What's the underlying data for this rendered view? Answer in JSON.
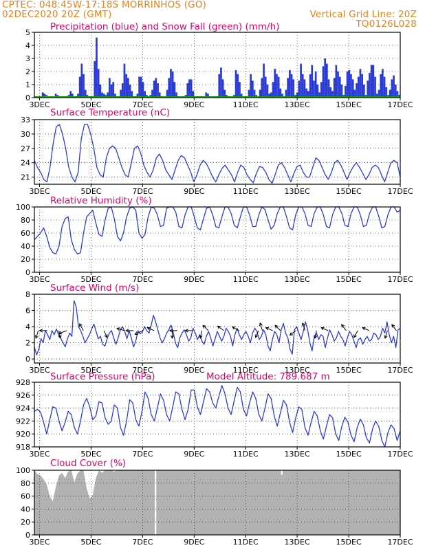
{
  "header": {
    "line1_left": "CPTEC:  048:45W-17:18S  MORRINHOS (GO)",
    "line2_left": "02DEC2020 20Z (GMT)",
    "line2_right": "Vertical Grid Line: 20Z",
    "line3_right": "TQ0126L028"
  },
  "colors": {
    "header": "#e8801a",
    "title": "#e0006f",
    "series": "#2b3bd6",
    "snow": "#00aa00",
    "cloud": "#b2b2b2",
    "arrow": "#000000"
  },
  "x_axis": {
    "tick_labels": [
      "3DEC",
      "5DEC",
      "7DEC",
      "9DEC",
      "11DEC",
      "13DEC",
      "15DEC",
      "17DEC"
    ]
  },
  "chart_data": [
    {
      "id": "precip",
      "type": "bar",
      "title": "Precipitation (blue) and Snow Fall (green) (mm/h)",
      "ylim": [
        0,
        5
      ],
      "yticks": [
        "0",
        "1",
        "2",
        "3",
        "4",
        "5"
      ],
      "grid": true,
      "x_day_range": [
        2.8,
        17.0
      ],
      "bin_hours": 3,
      "values": [
        0,
        0,
        0,
        0.1,
        0.4,
        0.3,
        0.2,
        0.1,
        0,
        0,
        0.1,
        0.3,
        0.2,
        0.1,
        0.1,
        0,
        0.1,
        0,
        0.2,
        0.5,
        0.3,
        0.1,
        0,
        0.3,
        1.6,
        2.6,
        1.8,
        0.6,
        0.2,
        0,
        0,
        0,
        2.8,
        4.6,
        2.2,
        1.0,
        0.4,
        0.3,
        0.2,
        0.4,
        1.5,
        1.0,
        1.2,
        0.3,
        0,
        0.1,
        0.6,
        1.1,
        2.6,
        1.8,
        1.5,
        1.0,
        0.5,
        0.1,
        0,
        0.3,
        1.6,
        1.6,
        1.2,
        0.5,
        0.2,
        0,
        0.2,
        0.6,
        1.3,
        1.5,
        1.1,
        0.4,
        0.1,
        0,
        0,
        0.6,
        1.5,
        2.2,
        2.0,
        1.2,
        0.4,
        0.1,
        0,
        0,
        0,
        0.2,
        1.1,
        1.4,
        1.4,
        0.5,
        0,
        0,
        0,
        0,
        0,
        0.1,
        0.4,
        0.3,
        0.1,
        0,
        0,
        0,
        0.1,
        1.8,
        2.3,
        1.4,
        0.6,
        0.2,
        0,
        0,
        0,
        0.2,
        2.1,
        1.8,
        1.2,
        0.3,
        0,
        0,
        0.1,
        0.6,
        1.8,
        1.3,
        0.6,
        0.2,
        0.1,
        0.6,
        1.5,
        2.6,
        1.6,
        1.0,
        0.3,
        0.4,
        1.2,
        2.2,
        1.8,
        1.6,
        0.7,
        0.3,
        0.1,
        0.6,
        1.5,
        2.1,
        1.8,
        1.4,
        0.2,
        0.4,
        1.3,
        2.6,
        1.8,
        1.4,
        0.7,
        0.5,
        1.8,
        2.5,
        1.3,
        2.0,
        1.0,
        0.4,
        1.2,
        2.4,
        3.0,
        2.6,
        1.4,
        0.8,
        0.5,
        1.5,
        2.5,
        2.0,
        1.6,
        1.0,
        0.2,
        0.9,
        2.0,
        2.1,
        1.8,
        1.4,
        0.6,
        1.1,
        1.6,
        2.2,
        1.8,
        1.0,
        0.2,
        1.3,
        1.9,
        2.5,
        2.5,
        1.6,
        0.3,
        0.6,
        1.8,
        2.2,
        1.6,
        0.8,
        0.2,
        0.6,
        1.4,
        1.7,
        1.0,
        0.5,
        0.2
      ],
      "snow_values": "all 0"
    },
    {
      "id": "temp",
      "type": "line",
      "title": "Surface Temperature (nC)",
      "ylim": [
        19.5,
        33
      ],
      "yticks": [
        "21",
        "24",
        "27",
        "30",
        "33"
      ],
      "grid": true,
      "x_day_range": [
        2.8,
        17.0
      ],
      "y": [
        24.5,
        23.0,
        22.0,
        20.5,
        20.0,
        23.0,
        28.0,
        31.5,
        32.0,
        30.0,
        27.0,
        23.0,
        21.0,
        20.0,
        22.0,
        29.0,
        32.0,
        32.0,
        30.0,
        27.0,
        23.0,
        21.5,
        21.0,
        25.0,
        27.0,
        27.5,
        27.0,
        25.0,
        23.0,
        21.5,
        21.0,
        24.0,
        27.0,
        27.5,
        26.0,
        23.5,
        22.0,
        21.0,
        22.5,
        25.0,
        25.8,
        24.5,
        22.5,
        21.5,
        20.5,
        22.5,
        24.5,
        25.5,
        25.0,
        23.5,
        22.0,
        20.0,
        21.5,
        23.5,
        24.5,
        23.8,
        22.5,
        21.0,
        20.0,
        21.5,
        22.8,
        23.5,
        22.5,
        21.5,
        20.0,
        22.0,
        23.5,
        23.0,
        21.5,
        20.5,
        19.8,
        21.8,
        23.2,
        23.0,
        22.0,
        20.5,
        19.7,
        21.5,
        23.5,
        24.0,
        23.0,
        21.5,
        20.0,
        21.8,
        23.2,
        23.5,
        22.0,
        21.0,
        21.0,
        23.0,
        25.0,
        24.5,
        23.0,
        21.5,
        20.5,
        22.0,
        24.0,
        24.5,
        23.5,
        22.0,
        20.5,
        22.0,
        23.2,
        24.0,
        23.0,
        21.8,
        20.5,
        21.5,
        23.0,
        23.5,
        23.0,
        21.5,
        20.0,
        22.0,
        24.0,
        24.5,
        24.0,
        21.0
      ]
    },
    {
      "id": "rh",
      "type": "line",
      "title": "Relative Humidity (%)",
      "ylim": [
        0,
        100
      ],
      "yticks": [
        "0",
        "20",
        "40",
        "60",
        "80",
        "100"
      ],
      "grid": true,
      "x_day_range": [
        2.8,
        17.0
      ],
      "y": [
        50,
        55,
        60,
        68,
        55,
        38,
        30,
        28,
        40,
        70,
        82,
        85,
        50,
        35,
        28,
        30,
        60,
        85,
        90,
        95,
        75,
        58,
        55,
        80,
        98,
        100,
        82,
        55,
        48,
        60,
        85,
        98,
        100,
        95,
        60,
        52,
        58,
        85,
        100,
        98,
        88,
        70,
        72,
        98,
        100,
        100,
        92,
        70,
        68,
        88,
        100,
        100,
        85,
        68,
        65,
        82,
        98,
        100,
        88,
        70,
        68,
        85,
        100,
        100,
        90,
        72,
        68,
        85,
        100,
        100,
        88,
        70,
        70,
        88,
        100,
        96,
        80,
        66,
        72,
        90,
        100,
        100,
        85,
        68,
        65,
        88,
        100,
        100,
        90,
        72,
        70,
        90,
        100,
        100,
        88,
        70,
        68,
        88,
        100,
        100,
        90,
        72,
        70,
        90,
        100,
        100,
        88,
        70,
        72,
        90,
        100,
        100,
        86,
        68,
        70,
        88,
        100,
        100,
        92,
        95
      ]
    },
    {
      "id": "wind",
      "type": "line",
      "title": "Surface Wind (m/s)",
      "ylim": [
        -0.5,
        8
      ],
      "yticks": [
        "0",
        "2",
        "4",
        "6",
        "8"
      ],
      "grid": true,
      "x_day_range": [
        2.8,
        17.0
      ],
      "y": [
        1.5,
        0.5,
        1.2,
        2.5,
        2.0,
        3.5,
        3.0,
        2.4,
        3.5,
        3.0,
        3.7,
        3.0,
        2.5,
        2.0,
        1.5,
        2.5,
        3.2,
        2.8,
        7.2,
        6.4,
        4.0,
        3.5,
        2.8,
        2.0,
        2.5,
        3.0,
        3.7,
        4.3,
        3.4,
        2.5,
        2.8,
        1.8,
        1.6,
        2.5,
        3.2,
        3.5,
        2.6,
        1.8,
        2.6,
        3.6,
        4.0,
        3.4,
        2.5,
        3.5,
        2.6,
        1.5,
        2.2,
        3.5,
        3.1,
        3.3,
        4.0,
        3.5,
        3.2,
        4.2,
        5.4,
        4.6,
        3.6,
        2.6,
        2.0,
        2.5,
        3.2,
        3.6,
        4.2,
        3.3,
        2.0,
        1.4,
        2.6,
        3.2,
        3.6,
        3.0,
        2.2,
        2.6,
        3.8,
        3.2,
        2.4,
        3.0,
        2.2,
        1.8,
        2.8,
        3.4,
        2.6,
        1.6,
        2.5,
        3.4,
        2.8,
        2.2,
        2.8,
        3.8,
        3.4,
        2.8,
        1.6,
        3.0,
        3.8,
        3.0,
        2.4,
        3.0,
        3.4,
        2.8,
        2.0,
        3.2,
        3.8,
        3.4,
        2.4,
        2.8,
        3.6,
        3.0,
        1.6,
        1.0,
        2.4,
        3.4,
        3.0,
        2.0,
        3.6,
        4.4,
        3.2,
        2.6,
        1.2,
        0.6,
        3.6,
        4.0,
        3.2,
        2.4,
        3.4,
        4.6,
        3.6,
        2.0,
        1.0,
        2.8,
        3.2,
        2.4,
        3.0,
        2.8,
        1.4,
        2.6,
        3.6,
        3.0,
        2.2,
        2.6,
        3.4,
        2.8,
        2.4,
        1.6,
        2.6,
        3.4,
        3.0,
        2.2,
        1.4,
        2.4,
        2.6,
        1.8,
        2.4,
        2.8,
        2.2,
        2.4,
        3.2,
        3.0,
        2.4,
        2.8,
        3.8,
        3.2,
        4.6,
        3.0,
        2.0,
        2.8,
        1.4,
        3.6,
        3.8
      ],
      "arrows": [
        {
          "day": 2.95,
          "u": -0.3,
          "v": -1.0
        },
        {
          "day": 3.3,
          "u": -1.0,
          "v": 0.0
        },
        {
          "day": 3.75,
          "u": 0.2,
          "v": -1.0
        },
        {
          "day": 4.05,
          "u": -1.0,
          "v": -0.4
        },
        {
          "day": 4.7,
          "u": -0.5,
          "v": 0.9
        },
        {
          "day": 5.5,
          "u": 0.4,
          "v": -0.9
        },
        {
          "day": 6.3,
          "u": -1.0,
          "v": 0.3
        },
        {
          "day": 6.65,
          "u": -1.0,
          "v": 0.0
        },
        {
          "day": 7.0,
          "u": -1.0,
          "v": -0.5
        },
        {
          "day": 7.45,
          "u": -0.9,
          "v": 0.4
        },
        {
          "day": 8.15,
          "u": 0.0,
          "v": -1.0
        },
        {
          "day": 8.35,
          "u": -1.0,
          "v": 0.0
        },
        {
          "day": 8.95,
          "u": -1.0,
          "v": 0.0
        },
        {
          "day": 9.3,
          "u": -0.2,
          "v": -1.0
        },
        {
          "day": 9.55,
          "u": -0.7,
          "v": 0.7
        },
        {
          "day": 10.15,
          "u": -0.8,
          "v": 0.6
        },
        {
          "day": 10.75,
          "u": -0.9,
          "v": 0.5
        },
        {
          "day": 11.5,
          "u": -0.4,
          "v": -0.9
        },
        {
          "day": 11.65,
          "u": -0.3,
          "v": 1.0
        },
        {
          "day": 12.05,
          "u": -0.9,
          "v": 0.4
        },
        {
          "day": 12.35,
          "u": -0.7,
          "v": 0.7
        },
        {
          "day": 12.95,
          "u": -0.8,
          "v": -0.6
        },
        {
          "day": 13.3,
          "u": -0.3,
          "v": 1.0
        },
        {
          "day": 13.75,
          "u": -0.2,
          "v": -1.0
        },
        {
          "day": 14.2,
          "u": -0.9,
          "v": 0.4
        },
        {
          "day": 14.9,
          "u": -0.6,
          "v": 0.8
        },
        {
          "day": 15.35,
          "u": -0.5,
          "v": -0.9
        },
        {
          "day": 15.8,
          "u": -0.9,
          "v": 0.4
        },
        {
          "day": 16.5,
          "u": -0.3,
          "v": -1.0
        },
        {
          "day": 16.85,
          "u": -0.6,
          "v": 0.8
        }
      ]
    },
    {
      "id": "press",
      "type": "line",
      "title": "Surface Pressure (hPa)",
      "subtitle": "Model Altitude:  789.687  m",
      "ylim": [
        918,
        928
      ],
      "yticks": [
        "918",
        "920",
        "922",
        "924",
        "926",
        "928"
      ],
      "grid": true,
      "x_day_range": [
        2.8,
        17.0
      ],
      "y": [
        923.5,
        923.8,
        923.4,
        921.8,
        920.0,
        922.2,
        924.2,
        924.0,
        922.0,
        920.5,
        921.8,
        923.5,
        923.0,
        921.0,
        920.0,
        922.0,
        924.5,
        925.5,
        924.2,
        922.2,
        922.8,
        925.0,
        924.8,
        922.5,
        921.5,
        922.0,
        924.5,
        924.0,
        921.0,
        919.8,
        922.0,
        925.3,
        924.8,
        922.2,
        921.2,
        923.5,
        926.5,
        925.5,
        923.0,
        922.0,
        924.0,
        926.2,
        925.2,
        923.0,
        922.0,
        924.2,
        926.5,
        926.2,
        923.8,
        922.2,
        923.8,
        926.8,
        926.8,
        924.2,
        923.0,
        925.0,
        927.0,
        926.5,
        924.8,
        924.0,
        925.8,
        927.5,
        926.2,
        924.0,
        923.0,
        925.2,
        927.2,
        926.5,
        923.8,
        922.8,
        924.8,
        926.5,
        925.5,
        923.0,
        922.0,
        924.0,
        926.2,
        925.5,
        922.8,
        921.2,
        923.2,
        925.2,
        924.5,
        921.8,
        920.2,
        922.5,
        924.2,
        923.8,
        921.0,
        919.8,
        921.8,
        923.5,
        922.8,
        920.5,
        919.2,
        921.2,
        923.0,
        922.5,
        920.0,
        919.0,
        921.2,
        922.6,
        921.8,
        919.8,
        918.8,
        921.0,
        922.3,
        921.4,
        919.4,
        918.6,
        920.8,
        922.0,
        921.2,
        919.0,
        918.0,
        920.2,
        921.4,
        920.8,
        919.0,
        920.5
      ]
    },
    {
      "id": "cloud",
      "type": "area",
      "title": "Cloud Cover (%)",
      "ylim": [
        0,
        100
      ],
      "yticks": [
        "0",
        "20",
        "40",
        "60",
        "80",
        "100"
      ],
      "grid": true,
      "x_day_range": [
        2.8,
        17.0
      ],
      "y": [
        100,
        94,
        92,
        86,
        78,
        60,
        52,
        75,
        92,
        96,
        88,
        98,
        100,
        82,
        95,
        100,
        100,
        72,
        56,
        62,
        88,
        100,
        96,
        100,
        100,
        100,
        98,
        100,
        100,
        100,
        100,
        100,
        100,
        100,
        100,
        100,
        100,
        100,
        100,
        100,
        100,
        100,
        100,
        100,
        100,
        100,
        100,
        100,
        100,
        100,
        100,
        100,
        100,
        100,
        100,
        100,
        100,
        100,
        100,
        100,
        100,
        100,
        100,
        100,
        100,
        100,
        100,
        100,
        100,
        100,
        100,
        100,
        100,
        100,
        100,
        100,
        100,
        100,
        100,
        100,
        100,
        100,
        100,
        100,
        100,
        100,
        100,
        100,
        100,
        100,
        100,
        100,
        100,
        100,
        100,
        100,
        100,
        100,
        100,
        100,
        100,
        100,
        100,
        100,
        100,
        100,
        100,
        100,
        100,
        100,
        100,
        100,
        100,
        100,
        100,
        100,
        100,
        100,
        100,
        100
      ],
      "dips": [
        {
          "day": 7.5,
          "value": 0
        },
        {
          "day": 12.4,
          "value": 93
        }
      ]
    }
  ]
}
